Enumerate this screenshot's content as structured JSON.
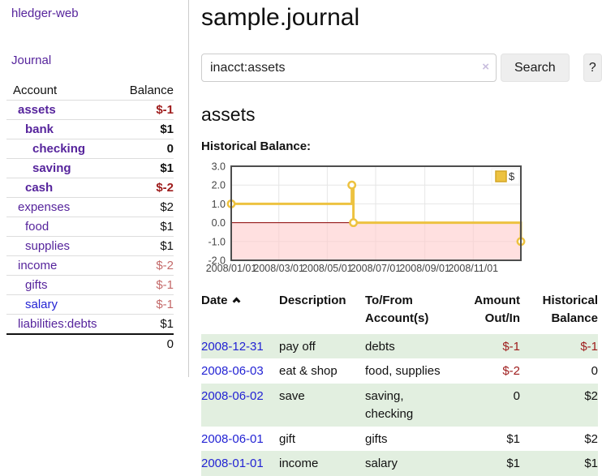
{
  "theme": {
    "purple": "#56249c",
    "blue": "#2323d4",
    "neg": "#9e1b1b",
    "negmuted": "#c46a6a",
    "stripe": "#e2efe0",
    "btnbg": "#eeeeee",
    "btnbr": "#e3e3e3"
  },
  "sidebar": {
    "brand": "hledger-web",
    "nav": {
      "journal": "Journal"
    },
    "table": {
      "header_account": "Account",
      "header_balance": "Balance",
      "rows": [
        {
          "name": "assets",
          "balance": "$-1"
        },
        {
          "name": "bank",
          "balance": "$1"
        },
        {
          "name": "checking",
          "balance": "0"
        },
        {
          "name": "saving",
          "balance": "$1"
        },
        {
          "name": "cash",
          "balance": "$-2"
        },
        {
          "name": "expenses",
          "balance": "$2"
        },
        {
          "name": "food",
          "balance": "$1"
        },
        {
          "name": "supplies",
          "balance": "$1"
        },
        {
          "name": "income",
          "balance": "$-2"
        },
        {
          "name": "gifts",
          "balance": "$-1"
        },
        {
          "name": "salary",
          "balance": "$-1"
        },
        {
          "name": "liabilities:debts",
          "balance": "$1"
        }
      ],
      "total": "0"
    }
  },
  "header": {
    "title": "sample.journal",
    "search": {
      "value": "inacct:assets",
      "clear_icon": "×",
      "search_button": "Search",
      "help_button": "?"
    }
  },
  "content": {
    "account_heading": "assets",
    "chart_label": "Historical Balance:"
  },
  "chart_data": {
    "type": "line",
    "step": true,
    "title": "Historical Balance:",
    "series": [
      {
        "name": "$",
        "color": "#edc240",
        "points": [
          [
            "2008-01-01",
            1
          ],
          [
            "2008-06-01",
            2
          ],
          [
            "2008-06-03",
            0
          ],
          [
            "2008-12-31",
            -1
          ]
        ]
      }
    ],
    "xlim": [
      "2008-01-01",
      "2008-12-31"
    ],
    "ylim": [
      -2,
      3
    ],
    "xticks": [
      "2008/01/01",
      "2008/03/01",
      "2008/05/01",
      "2008/07/01",
      "2008/09/01",
      "2008/11/01"
    ],
    "yticks": [
      3,
      2,
      1,
      0,
      -1,
      -2
    ],
    "ytick_labels": [
      "3.0",
      "2.0",
      "1.0",
      "0.0",
      "-1.0",
      "-2.0"
    ],
    "grid_color": "#e6e6e6",
    "border_color": "#4d4d4d",
    "zero_line_color": "#8b0000",
    "negative_region_fill": "#ffcccc",
    "legend_position": "top-right"
  },
  "transactions": {
    "headers": {
      "date": "Date",
      "description": "Description",
      "accounts": "To/From Account(s)",
      "amount": "Amount Out/In",
      "balance": "Historical Balance"
    },
    "rows": [
      {
        "date": "2008-12-31",
        "description": "pay off",
        "accounts": "debts",
        "amount": "$-1",
        "balance": "$-1"
      },
      {
        "date": "2008-06-03",
        "description": "eat & shop",
        "accounts": "food, supplies",
        "amount": "$-2",
        "balance": "0"
      },
      {
        "date": "2008-06-02",
        "description": "save",
        "accounts": "saving, checking",
        "amount": "0",
        "balance": "$2"
      },
      {
        "date": "2008-06-01",
        "description": "gift",
        "accounts": "gifts",
        "amount": "$1",
        "balance": "$2"
      },
      {
        "date": "2008-01-01",
        "description": "income",
        "accounts": "salary",
        "amount": "$1",
        "balance": "$1"
      }
    ]
  }
}
